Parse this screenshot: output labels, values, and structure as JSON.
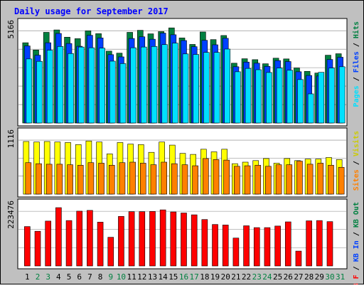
{
  "chart_data": {
    "type": "bar",
    "title": "Daily usage for September 2017",
    "days": [
      1,
      2,
      3,
      4,
      5,
      6,
      7,
      8,
      9,
      10,
      11,
      12,
      13,
      14,
      15,
      16,
      17,
      18,
      19,
      20,
      21,
      22,
      23,
      24,
      25,
      26,
      27,
      28,
      29,
      30,
      31
    ],
    "weekend_days": [
      2,
      3,
      9,
      10,
      16,
      17,
      23,
      24,
      30,
      31
    ],
    "panels": [
      {
        "key": "hits",
        "scale_label": "5166",
        "ymax": 5166,
        "series": [
          {
            "name": "Hits",
            "color": "#008040",
            "values": [
              4320,
              3930,
              4880,
              5010,
              4620,
              4540,
              4960,
              4810,
              3870,
              3760,
              4880,
              4990,
              4800,
              4920,
              5120,
              4580,
              4230,
              4900,
              4490,
              4710,
              3220,
              3460,
              3410,
              3190,
              3490,
              3450,
              2960,
              2780,
              2690,
              3650,
              3730
            ]
          },
          {
            "name": "Files",
            "color": "#0040ff",
            "values": [
              4150,
              3650,
              4320,
              4820,
              4280,
              4130,
              4720,
              4580,
              3680,
              3560,
              4550,
              4640,
              4510,
              4840,
              4750,
              4440,
              4110,
              4450,
              4210,
              4560,
              3030,
              3280,
              3220,
              3050,
              3360,
              3310,
              2760,
              2560,
              2530,
              3420,
              3540
            ]
          },
          {
            "name": "Pages",
            "color": "#00e0ff",
            "values": [
              3450,
              3320,
              3920,
              4120,
              3740,
              4090,
              4050,
              4030,
              3330,
              3200,
              4050,
              4090,
              4120,
              4220,
              4300,
              3720,
              3690,
              3800,
              3800,
              3980,
              2760,
              2940,
              2870,
              2720,
              2960,
              2840,
              2340,
              1570,
              2730,
              2960,
              3030
            ]
          }
        ]
      },
      {
        "key": "sites",
        "scale_label": "1116",
        "ymax": 1116,
        "series": [
          {
            "name": "Visits",
            "color": "#ffff00",
            "values": [
              1020,
              1010,
              1020,
              1010,
              1000,
              960,
              1030,
              1010,
              780,
              1000,
              970,
              960,
              810,
              1010,
              950,
              790,
              770,
              870,
              820,
              870,
              590,
              620,
              650,
              690,
              600,
              690,
              650,
              680,
              680,
              710,
              670
            ]
          },
          {
            "name": "Sites",
            "color": "#ff8000",
            "values": [
              610,
              590,
              580,
              580,
              570,
              560,
              610,
              600,
              560,
              610,
              620,
              600,
              570,
              620,
              590,
              570,
              550,
              690,
              670,
              660,
              540,
              550,
              560,
              540,
              570,
              570,
              640,
              580,
              600,
              560,
              520
            ]
          }
        ]
      },
      {
        "key": "kbytes",
        "scale_label": "223476",
        "ymax": 223476,
        "series": [
          {
            "name": "KB F",
            "color": "#ff0000",
            "values": [
              151000,
              133000,
              172000,
              223476,
              174000,
              210000,
              213000,
              168000,
              110000,
              190000,
              208000,
              208000,
              209000,
              215000,
              207000,
              203000,
              196000,
              178000,
              159000,
              157000,
              107000,
              154000,
              147000,
              147000,
              153000,
              169000,
              57000,
              173000,
              174000,
              170000,
              0
            ]
          }
        ]
      }
    ],
    "right_axis_labels": [
      {
        "panel": "hits",
        "parts": [
          {
            "text": "Pages",
            "color": "#00e0ff"
          },
          {
            "text": " / ",
            "color": "#000000"
          },
          {
            "text": "Files",
            "color": "#0040ff"
          },
          {
            "text": " / ",
            "color": "#000000"
          },
          {
            "text": "Hits",
            "color": "#008040"
          }
        ]
      },
      {
        "panel": "sites",
        "parts": [
          {
            "text": "Sites",
            "color": "#ff8000"
          },
          {
            "text": " / ",
            "color": "#000000"
          },
          {
            "text": "Visits",
            "color": "#cccc00"
          }
        ]
      },
      {
        "panel": "kbytes",
        "parts": [
          {
            "text": "KB F",
            "color": "#ff0000"
          },
          {
            "text": " / ",
            "color": "#000000"
          },
          {
            "text": "KB In",
            "color": "#0040ff"
          },
          {
            "text": " / ",
            "color": "#000000"
          },
          {
            "text": "KB Out",
            "color": "#008040"
          }
        ]
      }
    ],
    "colors": {
      "background": "#c0c0c0",
      "panel": "#ffffff",
      "title": "#0000ff",
      "weekday_label": "#000000",
      "weekend_label": "#008040",
      "grid": "#808080"
    }
  }
}
